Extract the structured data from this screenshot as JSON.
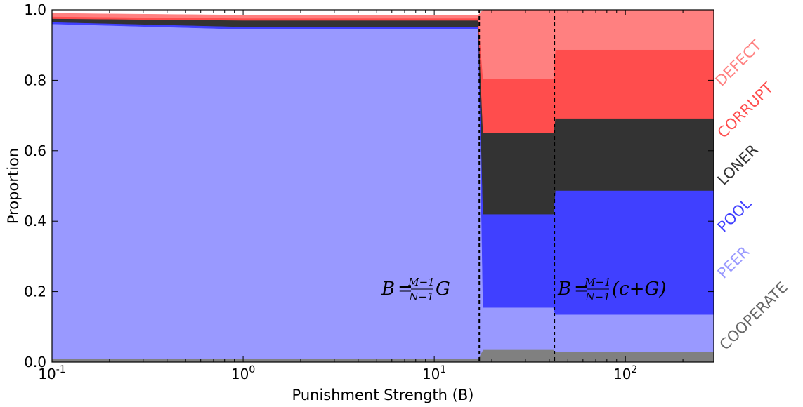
{
  "chart_data": {
    "type": "area",
    "xscale": "log",
    "xlim": [
      0.1,
      290
    ],
    "ylim": [
      0.0,
      1.0
    ],
    "xlabel": "Punishment Strength (B)",
    "ylabel": "Proportion",
    "yticks": [
      "0.0",
      "0.2",
      "0.4",
      "0.6",
      "0.8",
      "1.0"
    ],
    "xticks": [
      {
        "value": 0.1,
        "base": "10",
        "exp": "-1"
      },
      {
        "value": 1,
        "base": "10",
        "exp": "0"
      },
      {
        "value": 10,
        "base": "10",
        "exp": "1"
      },
      {
        "value": 100,
        "base": "10",
        "exp": "2"
      }
    ],
    "x": [
      0.1,
      1,
      17,
      18,
      42,
      43,
      290
    ],
    "series": [
      {
        "name": "COOPERATE",
        "color": "#808080",
        "values": [
          0.01,
          0.01,
          0.01,
          0.035,
          0.035,
          0.03,
          0.03
        ]
      },
      {
        "name": "PEER",
        "color": "#9999ff",
        "values": [
          0.95,
          0.935,
          0.935,
          0.12,
          0.12,
          0.105,
          0.105
        ]
      },
      {
        "name": "POOL",
        "color": "#4040ff",
        "values": [
          0.005,
          0.007,
          0.007,
          0.265,
          0.265,
          0.352,
          0.352
        ]
      },
      {
        "name": "LONER",
        "color": "#333333",
        "values": [
          0.01,
          0.018,
          0.018,
          0.23,
          0.23,
          0.205,
          0.205
        ]
      },
      {
        "name": "CORRUPT",
        "color": "#ff4d4d",
        "values": [
          0.006,
          0.006,
          0.006,
          0.155,
          0.155,
          0.195,
          0.195
        ]
      },
      {
        "name": "DEFECT",
        "color": "#ff8080",
        "values": [
          0.009,
          0.009,
          0.009,
          0.195,
          0.195,
          0.113,
          0.113
        ]
      }
    ],
    "vlines": [
      {
        "x": 17.2,
        "style": "dashed"
      },
      {
        "x": 42.5,
        "style": "dashed"
      }
    ],
    "annotations": [
      {
        "id": "a1",
        "lhs": "B",
        "num": "M−1",
        "den": "N−1",
        "rhs": "G"
      },
      {
        "id": "a2",
        "lhs": "B",
        "num": "M−1",
        "den": "N−1",
        "rhs": "(c+G)"
      }
    ],
    "legend_placement": "right, rotated labels"
  }
}
